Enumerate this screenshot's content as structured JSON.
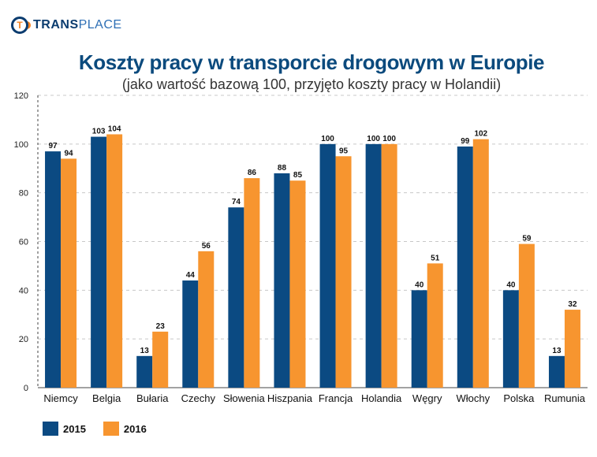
{
  "logo": {
    "part1": "TRANS",
    "part2": "PLACE",
    "mark_letter": "T"
  },
  "chart_data": {
    "type": "bar",
    "title": "Koszty pracy w transporcie drogowym w Europie",
    "subtitle": "(jako wartość bazową 100, przyjęto koszty pracy w Holandii)",
    "xlabel": "",
    "ylabel": "",
    "ylim": [
      0,
      120
    ],
    "yticks": [
      0,
      20,
      40,
      60,
      80,
      100,
      120
    ],
    "grid": true,
    "legend_position": "bottom-left",
    "categories": [
      "Niemcy",
      "Belgia",
      "Bułaria",
      "Czechy",
      "Słowenia",
      "Hiszpania",
      "Francja",
      "Holandia",
      "Węgry",
      "Włochy",
      "Polska",
      "Rumunia"
    ],
    "series": [
      {
        "name": "2015",
        "color": "#0b4a82",
        "values": [
          97,
          103,
          13,
          44,
          74,
          88,
          100,
          100,
          40,
          99,
          40,
          13
        ]
      },
      {
        "name": "2016",
        "color": "#f7952f",
        "values": [
          94,
          104,
          23,
          56,
          86,
          85,
          95,
          100,
          51,
          102,
          59,
          32
        ]
      }
    ]
  }
}
